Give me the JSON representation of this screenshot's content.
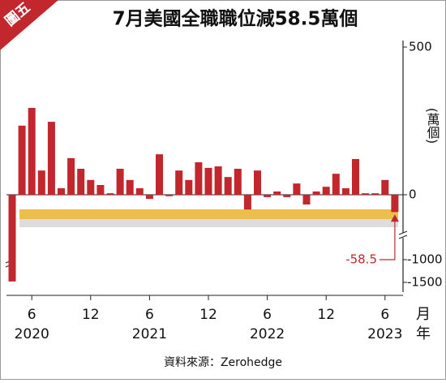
{
  "badge": "圖五",
  "chart_data": {
    "type": "bar",
    "title": "7月美國全職職位減58.5萬個",
    "y_label": "(萬個)",
    "x_label_month": "月",
    "x_label_year": "年",
    "source": "資料來源：Zerohedge",
    "annotation": {
      "text": "-58.5",
      "index": 39
    },
    "color": "#c1272d",
    "categories": [
      null,
      null,
      "6",
      null,
      null,
      null,
      null,
      null,
      "12",
      null,
      null,
      null,
      null,
      null,
      "6",
      null,
      null,
      null,
      null,
      null,
      "12",
      null,
      null,
      null,
      null,
      null,
      "6",
      null,
      null,
      null,
      null,
      null,
      "12",
      null,
      null,
      null,
      null,
      null,
      "6",
      null
    ],
    "years": [
      null,
      null,
      "2020",
      null,
      null,
      null,
      null,
      null,
      null,
      null,
      null,
      null,
      null,
      null,
      "2021",
      null,
      null,
      null,
      null,
      null,
      null,
      null,
      null,
      null,
      null,
      null,
      "2022",
      null,
      null,
      null,
      null,
      null,
      null,
      null,
      null,
      null,
      null,
      null,
      "2023",
      null
    ],
    "values": [
      -1480,
      234,
      294,
      82,
      247,
      22,
      124,
      88,
      50,
      33,
      5,
      88,
      50,
      22,
      -14,
      137,
      -5,
      82,
      50,
      110,
      91,
      96,
      60,
      88,
      -50,
      82,
      -8,
      11,
      -8,
      38,
      -33,
      11,
      27,
      71,
      22,
      121,
      5,
      5,
      50,
      -58.5
    ],
    "ylim": [
      -1500,
      500
    ],
    "yticks": [
      500,
      0,
      -1000,
      -1500
    ],
    "axis_break": [
      -200,
      -1000
    ]
  }
}
